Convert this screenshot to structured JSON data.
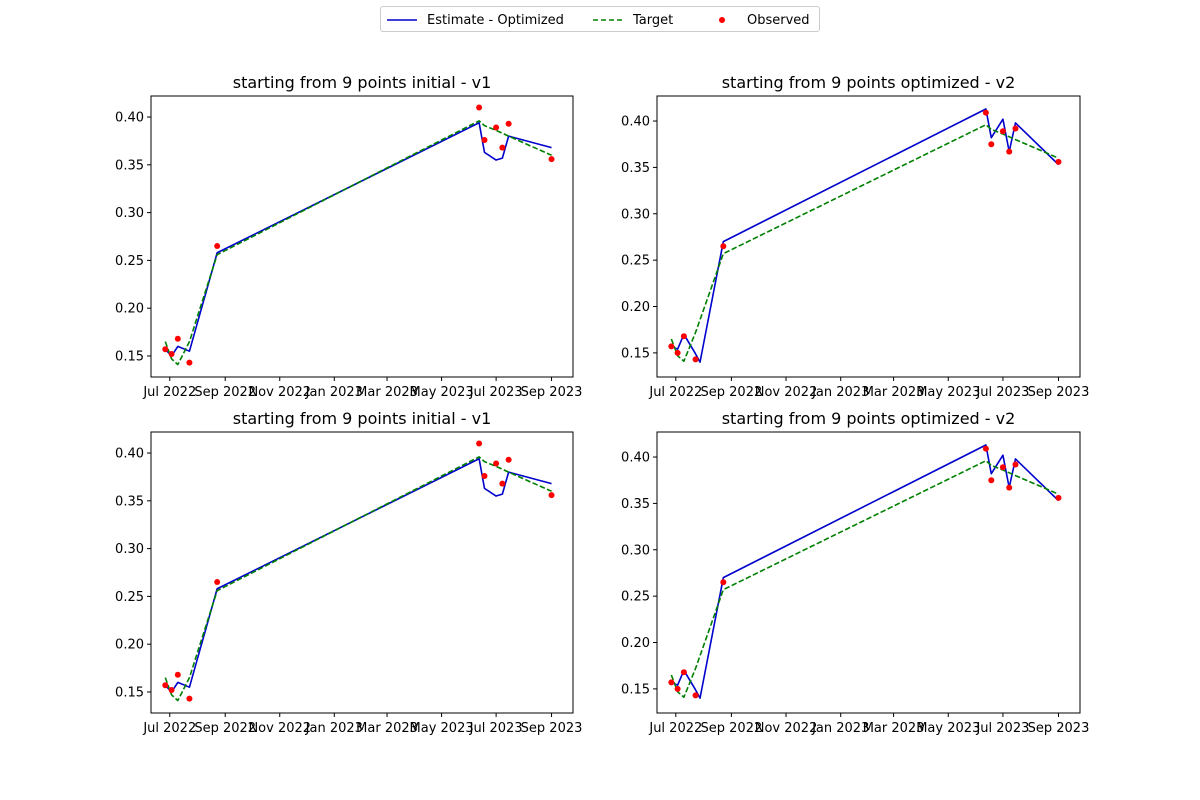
{
  "legend": {
    "items": [
      {
        "label": "Estimate - Optimized",
        "color": "#0000cc",
        "style": "solid"
      },
      {
        "label": "Target",
        "color": "#008000",
        "style": "dashed"
      },
      {
        "label": "Observed",
        "color": "#ff0000",
        "style": "marker"
      }
    ],
    "placement": "top-center"
  },
  "chart_data": [
    {
      "type": "line",
      "title": "starting from 9 points initial - v1",
      "xlabel": "",
      "ylabel": "",
      "xlim": [
        "2022-06-10",
        "2023-09-25"
      ],
      "ylim": [
        0.128,
        0.422
      ],
      "xticks": [
        {
          "date": "2022-07-01",
          "label": "Jul 2022"
        },
        {
          "date": "2022-09-01",
          "label": "Sep 2022"
        },
        {
          "date": "2022-11-01",
          "label": "Nov 2022"
        },
        {
          "date": "2023-01-01",
          "label": "Jan 2023"
        },
        {
          "date": "2023-03-01",
          "label": "Mar 2023"
        },
        {
          "date": "2023-05-01",
          "label": "May 2023"
        },
        {
          "date": "2023-07-01",
          "label": "Jul 2023"
        },
        {
          "date": "2023-09-01",
          "label": "Sep 2023"
        }
      ],
      "yticks": [
        0.15,
        0.2,
        0.25,
        0.3,
        0.35,
        0.4
      ],
      "ytick_labels": [
        "0.15",
        "0.20",
        "0.25",
        "0.30",
        "0.35",
        "0.40"
      ],
      "grid": false,
      "series": [
        {
          "name": "Estimate - Optimized",
          "color": "#0000cc",
          "style": "solid",
          "x": [
            "2022-06-26",
            "2022-07-03",
            "2022-07-10",
            "2022-07-23",
            "2022-08-23",
            "2023-06-12",
            "2023-06-18",
            "2023-07-01",
            "2023-07-08",
            "2023-07-15",
            "2023-09-01"
          ],
          "y": [
            0.157,
            0.15,
            0.16,
            0.155,
            0.258,
            0.394,
            0.363,
            0.355,
            0.357,
            0.38,
            0.368
          ]
        },
        {
          "name": "Target",
          "color": "#008000",
          "style": "dashed",
          "x": [
            "2022-06-26",
            "2022-07-03",
            "2022-07-10",
            "2022-07-23",
            "2022-08-23",
            "2023-06-12",
            "2023-06-18",
            "2023-07-01",
            "2023-07-08",
            "2023-07-15",
            "2023-09-01"
          ],
          "y": [
            0.165,
            0.147,
            0.141,
            0.165,
            0.256,
            0.396,
            0.391,
            0.386,
            0.383,
            0.38,
            0.36
          ]
        },
        {
          "name": "Observed",
          "color": "#ff0000",
          "style": "marker",
          "x": [
            "2022-06-26",
            "2022-07-03",
            "2022-07-10",
            "2022-07-23",
            "2022-08-23",
            "2023-06-12",
            "2023-06-18",
            "2023-07-01",
            "2023-07-08",
            "2023-07-15",
            "2023-09-01"
          ],
          "y": [
            0.157,
            0.152,
            0.168,
            0.143,
            0.265,
            0.41,
            0.376,
            0.389,
            0.368,
            0.393,
            0.356
          ]
        }
      ]
    },
    {
      "type": "line",
      "title": "starting from 9 points optimized - v2",
      "xlabel": "",
      "ylabel": "",
      "xlim": [
        "2022-06-10",
        "2023-09-25"
      ],
      "ylim": [
        0.124,
        0.427
      ],
      "xticks": [
        {
          "date": "2022-07-01",
          "label": "Jul 2022"
        },
        {
          "date": "2022-09-01",
          "label": "Sep 2022"
        },
        {
          "date": "2022-11-01",
          "label": "Nov 2022"
        },
        {
          "date": "2023-01-01",
          "label": "Jan 2023"
        },
        {
          "date": "2023-03-01",
          "label": "Mar 2023"
        },
        {
          "date": "2023-05-01",
          "label": "May 2023"
        },
        {
          "date": "2023-07-01",
          "label": "Jul 2023"
        },
        {
          "date": "2023-09-01",
          "label": "Sep 2023"
        }
      ],
      "yticks": [
        0.15,
        0.2,
        0.25,
        0.3,
        0.35,
        0.4
      ],
      "ytick_labels": [
        "0.15",
        "0.20",
        "0.25",
        "0.30",
        "0.35",
        "0.40"
      ],
      "grid": false,
      "series": [
        {
          "name": "Estimate - Optimized",
          "color": "#0000cc",
          "style": "solid",
          "x": [
            "2022-06-26",
            "2022-07-03",
            "2022-07-10",
            "2022-07-23",
            "2022-07-28",
            "2022-08-23",
            "2023-06-12",
            "2023-06-18",
            "2023-07-01",
            "2023-07-08",
            "2023-07-15",
            "2023-09-01"
          ],
          "y": [
            0.157,
            0.154,
            0.17,
            0.149,
            0.14,
            0.27,
            0.413,
            0.382,
            0.402,
            0.367,
            0.398,
            0.353
          ]
        },
        {
          "name": "Target",
          "color": "#008000",
          "style": "dashed",
          "x": [
            "2022-06-26",
            "2022-07-03",
            "2022-07-10",
            "2022-07-23",
            "2022-08-23",
            "2023-06-12",
            "2023-06-18",
            "2023-07-01",
            "2023-07-08",
            "2023-07-15",
            "2023-09-01"
          ],
          "y": [
            0.165,
            0.147,
            0.141,
            0.172,
            0.257,
            0.396,
            0.391,
            0.386,
            0.383,
            0.38,
            0.36
          ]
        },
        {
          "name": "Observed",
          "color": "#ff0000",
          "style": "marker",
          "x": [
            "2022-06-26",
            "2022-07-03",
            "2022-07-10",
            "2022-07-23",
            "2022-08-23",
            "2023-06-12",
            "2023-06-18",
            "2023-07-01",
            "2023-07-08",
            "2023-07-15",
            "2023-09-01"
          ],
          "y": [
            0.157,
            0.15,
            0.168,
            0.143,
            0.265,
            0.409,
            0.375,
            0.389,
            0.367,
            0.392,
            0.356
          ]
        }
      ]
    },
    {
      "type": "line",
      "title": "starting from 9 points initial - v1",
      "xlabel": "",
      "ylabel": "",
      "xlim": [
        "2022-06-10",
        "2023-09-25"
      ],
      "ylim": [
        0.128,
        0.422
      ],
      "xticks": [
        {
          "date": "2022-07-01",
          "label": "Jul 2022"
        },
        {
          "date": "2022-09-01",
          "label": "Sep 2022"
        },
        {
          "date": "2022-11-01",
          "label": "Nov 2022"
        },
        {
          "date": "2023-01-01",
          "label": "Jan 2023"
        },
        {
          "date": "2023-03-01",
          "label": "Mar 2023"
        },
        {
          "date": "2023-05-01",
          "label": "May 2023"
        },
        {
          "date": "2023-07-01",
          "label": "Jul 2023"
        },
        {
          "date": "2023-09-01",
          "label": "Sep 2023"
        }
      ],
      "yticks": [
        0.15,
        0.2,
        0.25,
        0.3,
        0.35,
        0.4
      ],
      "ytick_labels": [
        "0.15",
        "0.20",
        "0.25",
        "0.30",
        "0.35",
        "0.40"
      ],
      "grid": false,
      "series": [
        {
          "name": "Estimate - Optimized",
          "color": "#0000cc",
          "style": "solid",
          "x": [
            "2022-06-26",
            "2022-07-03",
            "2022-07-10",
            "2022-07-23",
            "2022-08-23",
            "2023-06-12",
            "2023-06-18",
            "2023-07-01",
            "2023-07-08",
            "2023-07-15",
            "2023-09-01"
          ],
          "y": [
            0.157,
            0.15,
            0.16,
            0.155,
            0.258,
            0.394,
            0.363,
            0.355,
            0.357,
            0.38,
            0.368
          ]
        },
        {
          "name": "Target",
          "color": "#008000",
          "style": "dashed",
          "x": [
            "2022-06-26",
            "2022-07-03",
            "2022-07-10",
            "2022-07-23",
            "2022-08-23",
            "2023-06-12",
            "2023-06-18",
            "2023-07-01",
            "2023-07-08",
            "2023-07-15",
            "2023-09-01"
          ],
          "y": [
            0.165,
            0.147,
            0.141,
            0.165,
            0.256,
            0.396,
            0.391,
            0.386,
            0.383,
            0.38,
            0.36
          ]
        },
        {
          "name": "Observed",
          "color": "#ff0000",
          "style": "marker",
          "x": [
            "2022-06-26",
            "2022-07-03",
            "2022-07-10",
            "2022-07-23",
            "2022-08-23",
            "2023-06-12",
            "2023-06-18",
            "2023-07-01",
            "2023-07-08",
            "2023-07-15",
            "2023-09-01"
          ],
          "y": [
            0.157,
            0.152,
            0.168,
            0.143,
            0.265,
            0.41,
            0.376,
            0.389,
            0.368,
            0.393,
            0.356
          ]
        }
      ]
    },
    {
      "type": "line",
      "title": "starting from 9 points optimized - v2",
      "xlabel": "",
      "ylabel": "",
      "xlim": [
        "2022-06-10",
        "2023-09-25"
      ],
      "ylim": [
        0.124,
        0.427
      ],
      "xticks": [
        {
          "date": "2022-07-01",
          "label": "Jul 2022"
        },
        {
          "date": "2022-09-01",
          "label": "Sep 2022"
        },
        {
          "date": "2022-11-01",
          "label": "Nov 2022"
        },
        {
          "date": "2023-01-01",
          "label": "Jan 2023"
        },
        {
          "date": "2023-03-01",
          "label": "Mar 2023"
        },
        {
          "date": "2023-05-01",
          "label": "May 2023"
        },
        {
          "date": "2023-07-01",
          "label": "Jul 2023"
        },
        {
          "date": "2023-09-01",
          "label": "Sep 2023"
        }
      ],
      "yticks": [
        0.15,
        0.2,
        0.25,
        0.3,
        0.35,
        0.4
      ],
      "ytick_labels": [
        "0.15",
        "0.20",
        "0.25",
        "0.30",
        "0.35",
        "0.40"
      ],
      "grid": false,
      "series": [
        {
          "name": "Estimate - Optimized",
          "color": "#0000cc",
          "style": "solid",
          "x": [
            "2022-06-26",
            "2022-07-03",
            "2022-07-10",
            "2022-07-23",
            "2022-07-28",
            "2022-08-23",
            "2023-06-12",
            "2023-06-18",
            "2023-07-01",
            "2023-07-08",
            "2023-07-15",
            "2023-09-01"
          ],
          "y": [
            0.157,
            0.154,
            0.17,
            0.149,
            0.14,
            0.27,
            0.413,
            0.382,
            0.402,
            0.367,
            0.398,
            0.353
          ]
        },
        {
          "name": "Target",
          "color": "#008000",
          "style": "dashed",
          "x": [
            "2022-06-26",
            "2022-07-03",
            "2022-07-10",
            "2022-07-23",
            "2022-08-23",
            "2023-06-12",
            "2023-06-18",
            "2023-07-01",
            "2023-07-08",
            "2023-07-15",
            "2023-09-01"
          ],
          "y": [
            0.165,
            0.147,
            0.141,
            0.172,
            0.257,
            0.396,
            0.391,
            0.386,
            0.383,
            0.38,
            0.36
          ]
        },
        {
          "name": "Observed",
          "color": "#ff0000",
          "style": "marker",
          "x": [
            "2022-06-26",
            "2022-07-03",
            "2022-07-10",
            "2022-07-23",
            "2022-08-23",
            "2023-06-12",
            "2023-06-18",
            "2023-07-01",
            "2023-07-08",
            "2023-07-15",
            "2023-09-01"
          ],
          "y": [
            0.157,
            0.15,
            0.168,
            0.143,
            0.265,
            0.409,
            0.375,
            0.389,
            0.367,
            0.392,
            0.356
          ]
        }
      ]
    }
  ]
}
